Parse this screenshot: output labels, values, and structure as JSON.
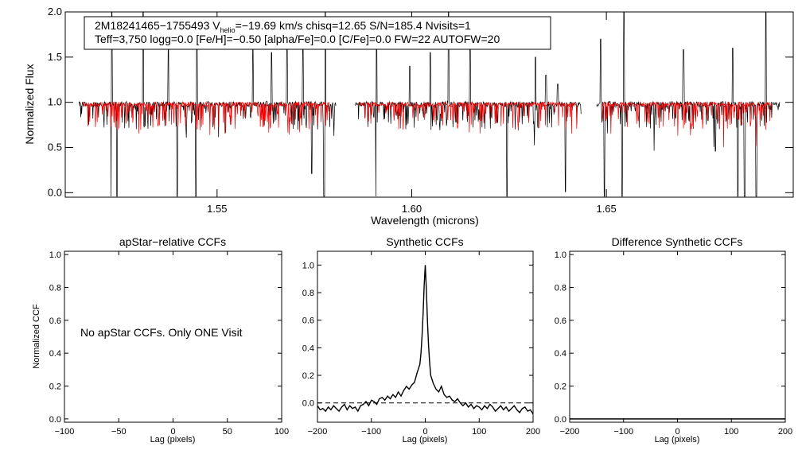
{
  "chart_data": [
    {
      "type": "line",
      "id": "spectrum",
      "info_line1_prefix": "2M18241465−1755493  V",
      "info_line1_sub": "helio",
      "info_line1_suffix": "=−19.69 km/s  chisq=12.65  S/N=185.4  Nvisits=1",
      "info_line2": "Teff=3,750 logg=0.0 [Fe/H]=−0.50 [alpha/Fe]=0.0 [C/Fe]=0.0 FW=22 AUTOFW=20",
      "xlabel": "Wavelength (microns)",
      "ylabel": "Normalized Flux",
      "xlim": [
        1.511,
        1.698
      ],
      "ylim": [
        -0.05,
        2.0
      ],
      "xticks": [
        1.55,
        1.6,
        1.65
      ],
      "xtick_labels": [
        "1.55",
        "1.60",
        "1.65"
      ],
      "yticks": [
        0.0,
        0.5,
        1.0,
        1.5,
        2.0
      ],
      "ytick_labels": [
        "0.0",
        "0.5",
        "1.0",
        "1.5",
        "2.0"
      ],
      "chip_ranges": [
        [
          1.5145,
          1.5805
        ],
        [
          1.5855,
          1.6435
        ],
        [
          1.6475,
          1.6945
        ]
      ],
      "model_ranges": [
        [
          1.5155,
          1.579
        ],
        [
          1.5865,
          1.6425
        ],
        [
          1.649,
          1.6925
        ]
      ],
      "series": [
        {
          "name": "observed",
          "color": "#000000",
          "continuum": 0.91,
          "noise": 0.05
        },
        {
          "name": "model",
          "color": "#ff0000",
          "continuum": 0.91,
          "noise": 0.04
        }
      ],
      "absorption_lines": [
        {
          "x": 1.5228,
          "depth": 0.95
        },
        {
          "x": 1.5243,
          "depth": 0.95
        },
        {
          "x": 1.5398,
          "depth": 0.95
        },
        {
          "x": 1.5446,
          "depth": 0.95
        },
        {
          "x": 1.5743,
          "depth": 0.7
        },
        {
          "x": 1.5775,
          "depth": 0.95
        },
        {
          "x": 1.5908,
          "depth": 0.95
        },
        {
          "x": 1.6245,
          "depth": 0.95
        },
        {
          "x": 1.6395,
          "depth": 0.9
        },
        {
          "x": 1.6495,
          "depth": 0.95
        },
        {
          "x": 1.654,
          "depth": 0.95
        },
        {
          "x": 1.678,
          "depth": 0.45
        },
        {
          "x": 1.6838,
          "depth": 0.95
        },
        {
          "x": 1.6855,
          "depth": 0.95
        },
        {
          "x": 1.6885,
          "depth": 0.95
        }
      ],
      "emission_spikes": [
        {
          "x": 1.523,
          "height": 2.0
        },
        {
          "x": 1.531,
          "height": 2.0
        },
        {
          "x": 1.5375,
          "height": 1.58
        },
        {
          "x": 1.5448,
          "height": 1.85
        },
        {
          "x": 1.5592,
          "height": 1.6
        },
        {
          "x": 1.564,
          "height": 1.55
        },
        {
          "x": 1.568,
          "height": 1.72
        },
        {
          "x": 1.572,
          "height": 1.65
        },
        {
          "x": 1.5778,
          "height": 2.0
        },
        {
          "x": 1.591,
          "height": 1.8
        },
        {
          "x": 1.5995,
          "height": 1.4
        },
        {
          "x": 1.6048,
          "height": 1.55
        },
        {
          "x": 1.6095,
          "height": 2.0
        },
        {
          "x": 1.615,
          "height": 1.7
        },
        {
          "x": 1.6318,
          "height": 1.5
        },
        {
          "x": 1.6345,
          "height": 1.3
        },
        {
          "x": 1.6375,
          "height": 1.2
        },
        {
          "x": 1.6485,
          "height": 1.7
        },
        {
          "x": 1.6545,
          "height": 2.0
        },
        {
          "x": 1.6698,
          "height": 1.58
        },
        {
          "x": 1.6825,
          "height": 1.6
        },
        {
          "x": 1.691,
          "height": 2.0
        }
      ]
    },
    {
      "type": "line",
      "id": "apstar-ccf",
      "title": "apStar−relative CCFs",
      "xlabel": "Lag (pixels)",
      "ylabel": "Normalized CCF",
      "xlim": [
        -100,
        100
      ],
      "ylim": [
        -0.02,
        1.02
      ],
      "xticks": [
        -100,
        -50,
        0,
        50,
        100
      ],
      "xtick_labels": [
        "−100",
        "−50",
        "0",
        "50",
        "100"
      ],
      "yticks": [
        0.0,
        0.2,
        0.4,
        0.6,
        0.8,
        1.0
      ],
      "ytick_labels": [
        "0.0",
        "0.2",
        "0.4",
        "0.6",
        "0.8",
        "1.0"
      ],
      "annotation": "No apStar CCFs.  Only ONE Visit",
      "series": []
    },
    {
      "type": "line",
      "id": "synthetic-ccf",
      "title": "Synthetic CCFs",
      "xlabel": "Lag (pixels)",
      "ylabel": "",
      "xlim": [
        -200,
        200
      ],
      "ylim": [
        -0.14,
        1.1
      ],
      "xticks": [
        -200,
        -100,
        0,
        100,
        200
      ],
      "xtick_labels": [
        "−200",
        "−100",
        "0",
        "100",
        "200"
      ],
      "yticks": [
        0.0,
        0.2,
        0.4,
        0.6,
        0.8,
        1.0
      ],
      "ytick_labels": [
        "0.0",
        "0.2",
        "0.4",
        "0.6",
        "0.8",
        "1.0"
      ],
      "zero_line": 0.0,
      "peak": {
        "x": 0,
        "y": 1.0
      },
      "series": [
        {
          "name": "ccf",
          "color": "#000000",
          "x": [
            -200,
            -195,
            -190,
            -185,
            -180,
            -175,
            -170,
            -165,
            -160,
            -155,
            -150,
            -145,
            -140,
            -135,
            -130,
            -125,
            -120,
            -115,
            -110,
            -105,
            -100,
            -95,
            -90,
            -85,
            -80,
            -75,
            -70,
            -65,
            -60,
            -55,
            -50,
            -45,
            -40,
            -35,
            -30,
            -25,
            -20,
            -15,
            -10,
            -8,
            -6,
            -4,
            -2,
            0,
            2,
            4,
            6,
            8,
            10,
            15,
            20,
            25,
            30,
            35,
            40,
            45,
            50,
            55,
            60,
            65,
            70,
            75,
            80,
            85,
            90,
            95,
            100,
            105,
            110,
            115,
            120,
            125,
            130,
            135,
            140,
            145,
            150,
            155,
            160,
            165,
            170,
            175,
            180,
            185,
            190,
            195,
            200
          ],
          "y": [
            -0.02,
            -0.05,
            -0.04,
            -0.06,
            -0.03,
            -0.05,
            -0.02,
            -0.04,
            -0.06,
            -0.03,
            -0.01,
            -0.05,
            -0.02,
            -0.04,
            -0.03,
            -0.06,
            -0.02,
            -0.01,
            0.01,
            -0.02,
            0.02,
            0.01,
            -0.01,
            0.03,
            0.04,
            0.02,
            0.05,
            0.03,
            0.06,
            0.04,
            0.08,
            0.05,
            0.09,
            0.12,
            0.1,
            0.13,
            0.15,
            0.22,
            0.28,
            0.36,
            0.48,
            0.65,
            0.85,
            1.0,
            0.82,
            0.6,
            0.42,
            0.3,
            0.2,
            0.14,
            0.1,
            0.08,
            0.12,
            0.06,
            0.04,
            0.05,
            0.02,
            0.01,
            0.03,
            0.0,
            -0.02,
            0.0,
            -0.03,
            -0.01,
            -0.04,
            -0.02,
            -0.03,
            -0.05,
            -0.02,
            -0.04,
            -0.01,
            -0.03,
            -0.06,
            -0.04,
            -0.02,
            -0.05,
            -0.03,
            -0.06,
            -0.04,
            -0.02,
            -0.05,
            -0.07,
            -0.04,
            -0.03,
            -0.06,
            -0.05,
            -0.08
          ]
        }
      ]
    },
    {
      "type": "line",
      "id": "difference-ccf",
      "title": "Difference Synthetic CCFs",
      "xlabel": "Lag (pixels)",
      "ylabel": "",
      "xlim": [
        -200,
        200
      ],
      "ylim": [
        -0.02,
        1.02
      ],
      "xticks": [
        -200,
        -100,
        0,
        100,
        200
      ],
      "xtick_labels": [
        "−200",
        "−100",
        "0",
        "100",
        "200"
      ],
      "yticks": [
        0.0,
        0.2,
        0.4,
        0.6,
        0.8,
        1.0
      ],
      "ytick_labels": [
        "0.0",
        "0.2",
        "0.4",
        "0.6",
        "0.8",
        "1.0"
      ],
      "series": []
    }
  ]
}
